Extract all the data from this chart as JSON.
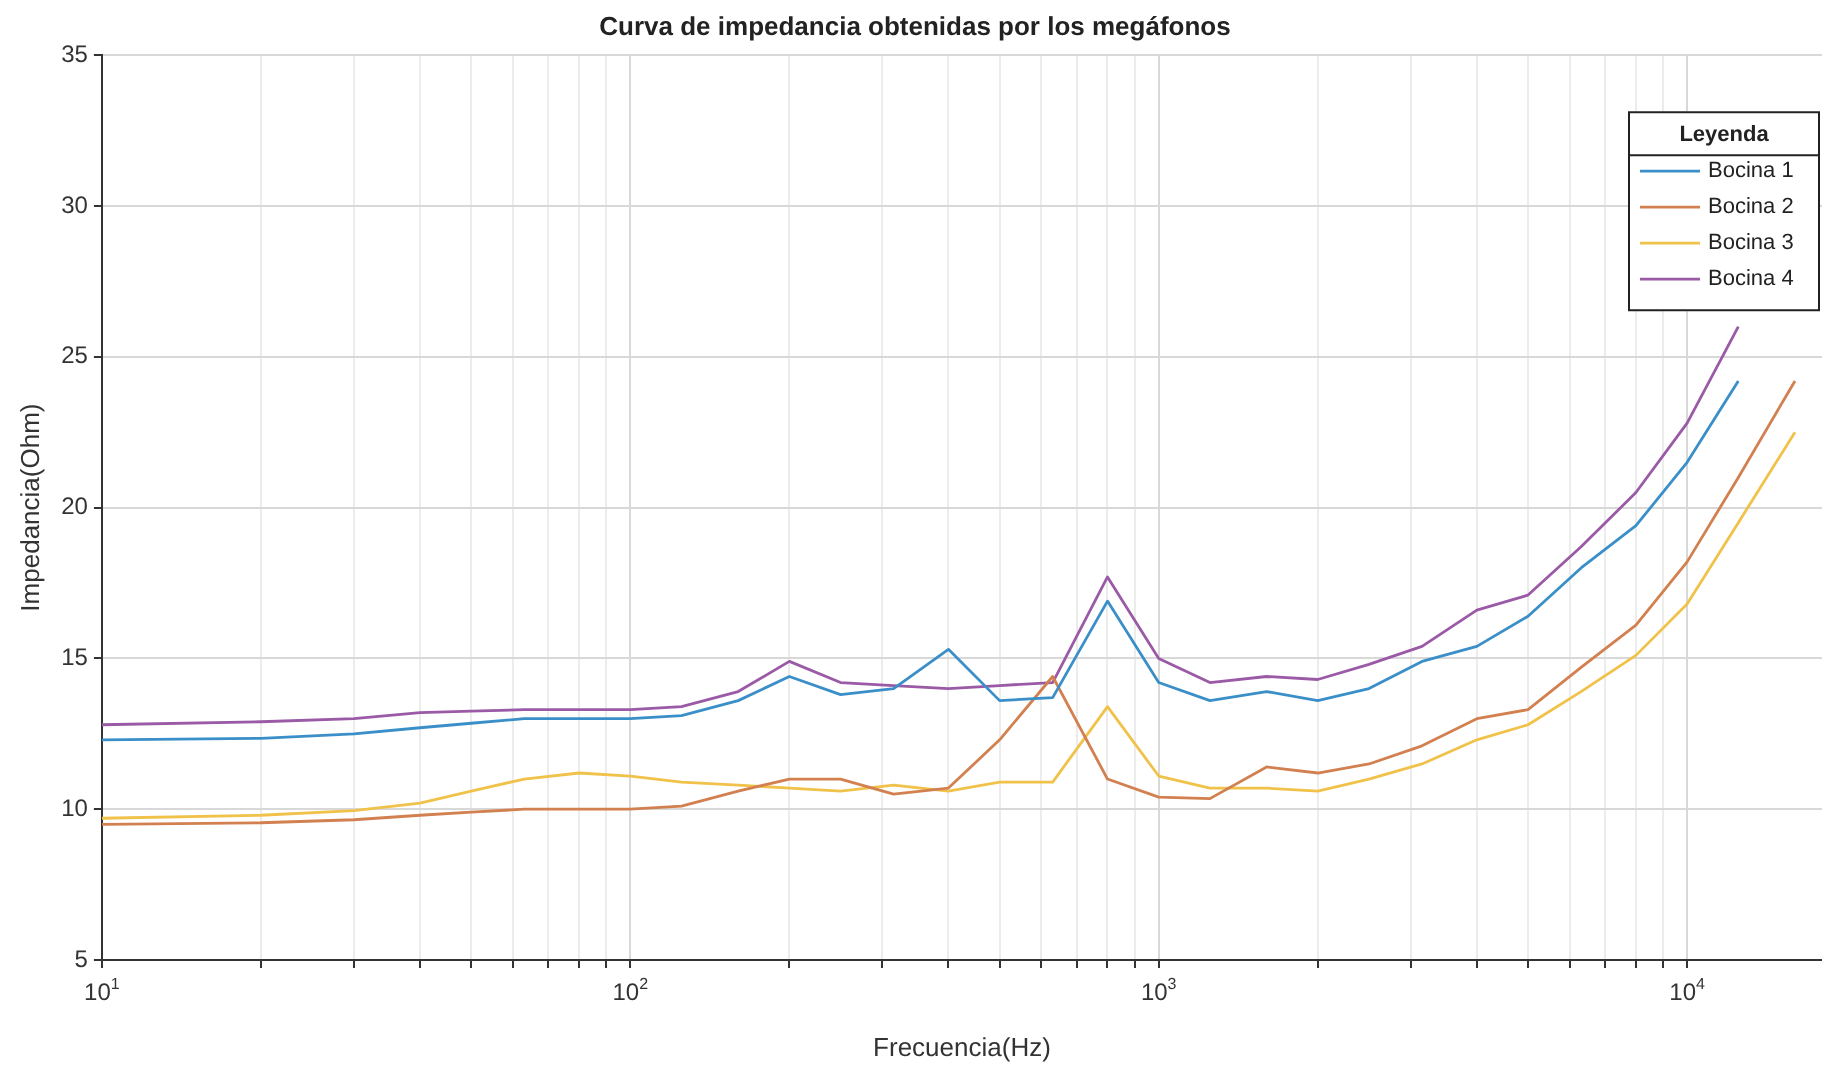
{
  "chart_data": {
    "type": "line",
    "title": "Curva de impedancia obtenidas por los megáfonos",
    "xlabel": "Frecuencia(Hz)",
    "ylabel": "Impedancia(Ohm)",
    "legend_title": "Leyenda",
    "legend": "top right",
    "grid": true,
    "log": "x",
    "marker": "none",
    "line_style": "solid",
    "x": [
      10,
      20,
      30,
      40,
      50,
      63,
      80,
      100,
      125,
      160,
      200,
      250,
      315,
      400,
      500,
      630,
      800,
      1000,
      1250,
      1600,
      2000,
      2500,
      3150,
      4000,
      5000,
      6300,
      8000,
      10000,
      12500,
      16000
    ],
    "xlim": [
      10,
      18000
    ],
    "xticks": [
      {
        "value": 10,
        "label": "10$^{1}$"
      },
      {
        "value": 20,
        "label": null
      },
      {
        "value": 30,
        "label": null
      },
      {
        "value": 40,
        "label": null
      },
      {
        "value": 50,
        "label": null
      },
      {
        "value": 60,
        "label": null
      },
      {
        "value": 70,
        "label": null
      },
      {
        "value": 80,
        "label": null
      },
      {
        "value": 90,
        "label": null
      },
      {
        "value": 100,
        "label": "10$^{2}$"
      },
      {
        "value": 200,
        "label": null
      },
      {
        "value": 300,
        "label": null
      },
      {
        "value": 400,
        "label": null
      },
      {
        "value": 500,
        "label": null
      },
      {
        "value": 600,
        "label": null
      },
      {
        "value": 700,
        "label": null
      },
      {
        "value": 800,
        "label": null
      },
      {
        "value": 900,
        "label": null
      },
      {
        "value": 1000,
        "label": "10$^{3}$"
      },
      {
        "value": 2000,
        "label": null
      },
      {
        "value": 3000,
        "label": null
      },
      {
        "value": 4000,
        "label": null
      },
      {
        "value": 5000,
        "label": null
      },
      {
        "value": 6000,
        "label": null
      },
      {
        "value": 7000,
        "label": null
      },
      {
        "value": 8000,
        "label": null
      },
      {
        "value": 9000,
        "label": null
      },
      {
        "value": 10000,
        "label": "10$^{4}$"
      }
    ],
    "ylim": [
      5,
      35
    ],
    "yticks": [
      5,
      10,
      15,
      20,
      25,
      30,
      35
    ],
    "series": [
      {
        "name": "Bocina 1",
        "color": "#3a8fc8",
        "values": [
          12.3,
          12.35,
          12.5,
          12.7,
          12.85,
          13.0,
          13.0,
          13.0,
          13.1,
          13.6,
          14.4,
          13.8,
          14.0,
          15.3,
          13.6,
          13.7,
          16.9,
          14.2,
          13.6,
          13.9,
          13.6,
          14.0,
          14.9,
          15.4,
          16.4,
          18.0,
          19.4,
          21.5,
          24.2,
          null
        ]
      },
      {
        "name": "Bocina 2",
        "color": "#d2804f",
        "values": [
          9.5,
          9.55,
          9.65,
          9.8,
          9.9,
          10.0,
          10.0,
          10.0,
          10.1,
          10.6,
          11.0,
          11.0,
          10.5,
          10.7,
          12.3,
          14.4,
          11.0,
          10.4,
          10.35,
          11.4,
          11.2,
          11.5,
          12.1,
          13.0,
          13.3,
          14.7,
          16.1,
          18.2,
          21.0,
          24.2
        ]
      },
      {
        "name": "Bocina 3",
        "color": "#f0c24a",
        "values": [
          9.7,
          9.8,
          9.95,
          10.2,
          10.6,
          11.0,
          11.2,
          11.1,
          10.9,
          10.8,
          10.7,
          10.6,
          10.8,
          10.6,
          10.9,
          10.9,
          13.4,
          11.1,
          10.7,
          10.7,
          10.6,
          11.0,
          11.5,
          12.3,
          12.8,
          13.9,
          15.1,
          16.8,
          19.5,
          22.5
        ]
      },
      {
        "name": "Bocina 4",
        "color": "#9a5aa6",
        "values": [
          12.8,
          12.9,
          13.0,
          13.2,
          13.25,
          13.3,
          13.3,
          13.3,
          13.4,
          13.9,
          14.9,
          14.2,
          14.1,
          14.0,
          14.1,
          14.2,
          17.7,
          15.0,
          14.2,
          14.4,
          14.3,
          14.8,
          15.4,
          16.6,
          17.1,
          18.7,
          20.5,
          22.8,
          26.0,
          null
        ]
      }
    ]
  }
}
